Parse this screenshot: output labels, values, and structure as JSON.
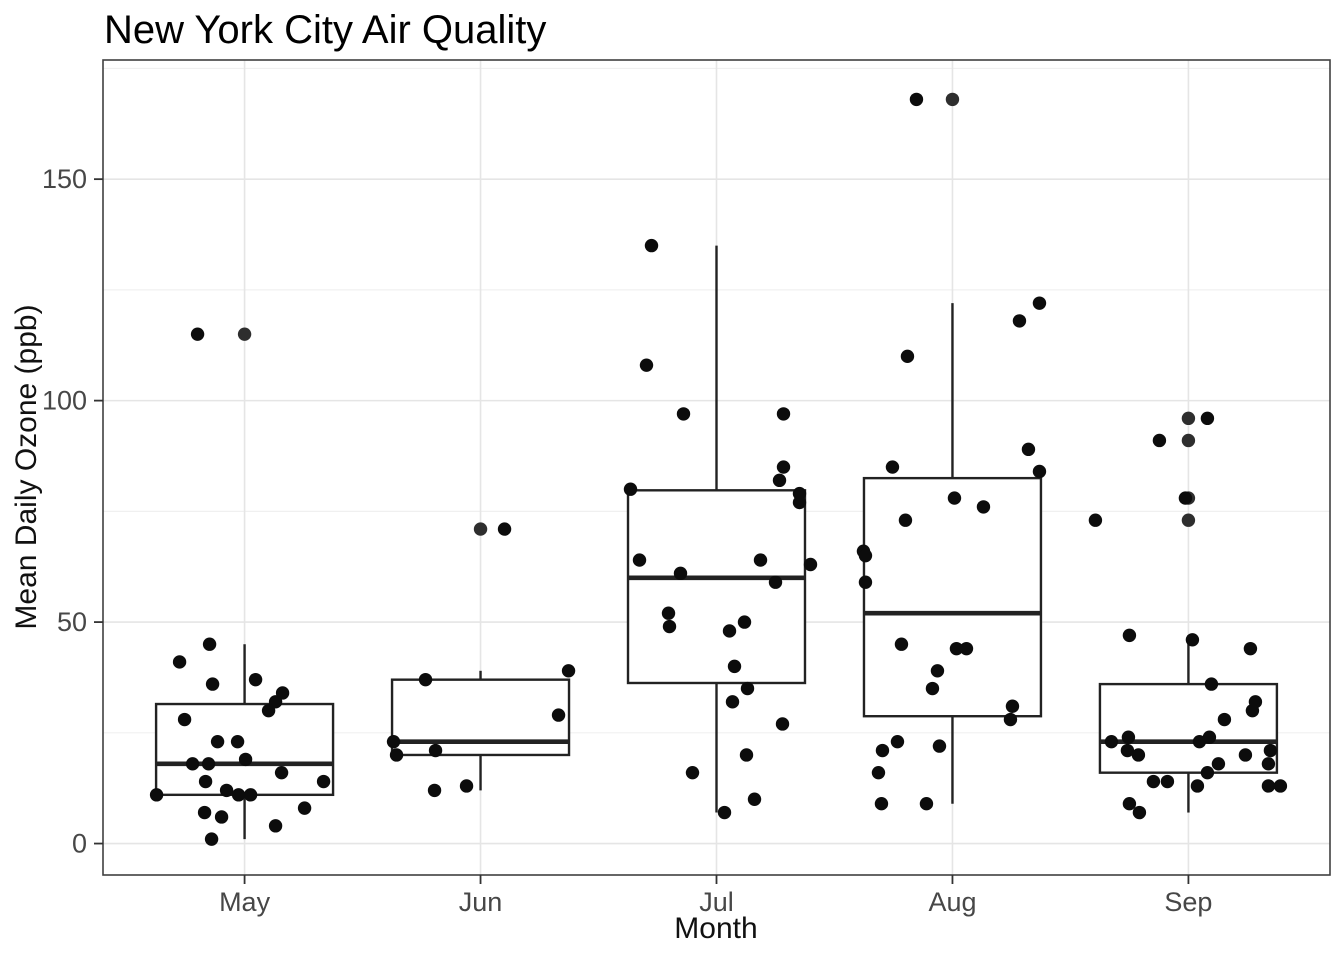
{
  "title": "New York City Air Quality",
  "chart_data": {
    "type": "boxplot+jitter",
    "title": "New York City Air Quality",
    "xlabel": "Month",
    "ylabel": "Mean Daily Ozone (ppb)",
    "categories": [
      "May",
      "Jun",
      "Jul",
      "Aug",
      "Sep"
    ],
    "y_major_ticks": [
      0,
      50,
      100,
      150
    ],
    "y_minor_ticks": [
      25,
      75,
      125,
      175
    ],
    "ylim": [
      -7.1,
      176.9
    ],
    "grid": true,
    "legend": "none",
    "series": [
      {
        "month": "May",
        "box": {
          "whisker_low": 1,
          "q1": 11,
          "median": 18,
          "q3": 31.5,
          "whisker_high": 45
        },
        "outliers": [
          115
        ],
        "points": [
          [
            115,
            -47
          ],
          [
            45,
            -35
          ],
          [
            41,
            -65
          ],
          [
            37,
            11
          ],
          [
            36,
            -32
          ],
          [
            34,
            38
          ],
          [
            32,
            31
          ],
          [
            30,
            24
          ],
          [
            28,
            -60
          ],
          [
            23,
            -27
          ],
          [
            23,
            -7
          ],
          [
            19,
            1
          ],
          [
            18,
            -52
          ],
          [
            18,
            -36
          ],
          [
            16,
            37
          ],
          [
            14,
            79
          ],
          [
            14,
            -39
          ],
          [
            12,
            -18
          ],
          [
            11,
            -6
          ],
          [
            11,
            6
          ],
          [
            11,
            -88
          ],
          [
            8,
            60
          ],
          [
            7,
            -40
          ],
          [
            6,
            -23
          ],
          [
            4,
            31
          ],
          [
            1,
            -33
          ]
        ]
      },
      {
        "month": "Jun",
        "box": {
          "whisker_low": 12,
          "q1": 20,
          "median": 23,
          "q3": 37,
          "whisker_high": 39
        },
        "outliers": [
          71
        ],
        "points": [
          [
            71,
            24
          ],
          [
            39,
            88
          ],
          [
            37,
            -55
          ],
          [
            29,
            78
          ],
          [
            23,
            -87
          ],
          [
            21,
            -45
          ],
          [
            20,
            -84
          ],
          [
            13,
            -14
          ],
          [
            12,
            -46
          ]
        ]
      },
      {
        "month": "Jul",
        "box": {
          "whisker_low": 7,
          "q1": 36.25,
          "median": 60,
          "q3": 79.75,
          "whisker_high": 135
        },
        "outliers": [],
        "points": [
          [
            135,
            -65
          ],
          [
            108,
            -70
          ],
          [
            97,
            -33
          ],
          [
            97,
            67
          ],
          [
            85,
            67
          ],
          [
            82,
            63
          ],
          [
            80,
            -86
          ],
          [
            79,
            83
          ],
          [
            77,
            83
          ],
          [
            64,
            -77
          ],
          [
            64,
            44
          ],
          [
            63,
            94
          ],
          [
            61,
            -36
          ],
          [
            59,
            59
          ],
          [
            52,
            -48
          ],
          [
            50,
            28
          ],
          [
            49,
            -47
          ],
          [
            48,
            13
          ],
          [
            40,
            18
          ],
          [
            35,
            31
          ],
          [
            32,
            16
          ],
          [
            27,
            66
          ],
          [
            20,
            30
          ],
          [
            16,
            -24
          ],
          [
            10,
            38
          ],
          [
            7,
            8
          ]
        ]
      },
      {
        "month": "Aug",
        "box": {
          "whisker_low": 9,
          "q1": 28.75,
          "median": 52,
          "q3": 82.5,
          "whisker_high": 122
        },
        "outliers": [
          168
        ],
        "points": [
          [
            168,
            -36
          ],
          [
            122,
            87
          ],
          [
            118,
            67
          ],
          [
            110,
            -45
          ],
          [
            89,
            76
          ],
          [
            85,
            -60
          ],
          [
            84,
            87
          ],
          [
            78,
            2
          ],
          [
            76,
            31
          ],
          [
            73,
            -47
          ],
          [
            66,
            -89
          ],
          [
            65,
            -87
          ],
          [
            59,
            -87
          ],
          [
            45,
            -51
          ],
          [
            44,
            14
          ],
          [
            44,
            4
          ],
          [
            39,
            -15
          ],
          [
            35,
            -20
          ],
          [
            31,
            60
          ],
          [
            28,
            58
          ],
          [
            23,
            -55
          ],
          [
            22,
            -13
          ],
          [
            21,
            -70
          ],
          [
            16,
            -74
          ],
          [
            9,
            -71
          ],
          [
            9,
            -26
          ]
        ]
      },
      {
        "month": "Sep",
        "box": {
          "whisker_low": 7,
          "q1": 16,
          "median": 23,
          "q3": 36,
          "whisker_high": 47
        },
        "outliers": [
          73,
          78,
          91,
          96
        ],
        "points": [
          [
            96,
            19
          ],
          [
            91,
            -29
          ],
          [
            78,
            -3
          ],
          [
            73,
            -93
          ],
          [
            47,
            -59
          ],
          [
            46,
            4
          ],
          [
            44,
            62
          ],
          [
            36,
            23
          ],
          [
            32,
            67
          ],
          [
            30,
            64
          ],
          [
            28,
            36
          ],
          [
            24,
            -60
          ],
          [
            24,
            21
          ],
          [
            23,
            -77
          ],
          [
            23,
            11
          ],
          [
            21,
            -61
          ],
          [
            21,
            82
          ],
          [
            20,
            -50
          ],
          [
            20,
            57
          ],
          [
            18,
            30
          ],
          [
            18,
            80
          ],
          [
            16,
            19
          ],
          [
            14,
            -35
          ],
          [
            14,
            -21
          ],
          [
            13,
            9
          ],
          [
            13,
            80
          ],
          [
            13,
            92
          ],
          [
            9,
            -59
          ],
          [
            7,
            -49
          ]
        ]
      }
    ],
    "n_points": 116
  },
  "style": {
    "background": "#ffffff",
    "panel_border": "#404040",
    "grid_major": "#e5e5e5",
    "grid_minor": "#f0f0f0",
    "box_stroke": "#222222",
    "box_fill": "#ffffff",
    "point_color": "#0c0c0c",
    "outlier_color": "#2e2e2e",
    "tick_color": "#333333",
    "tick_label_color": "#474747",
    "axis_title_color": "#111111",
    "title_color": "#000000"
  }
}
